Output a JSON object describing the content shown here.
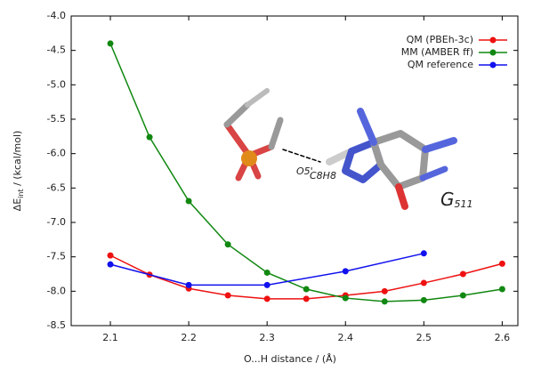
{
  "chart_data": {
    "type": "line",
    "xlabel": "O...H distance / (Å)",
    "ylabel": {
      "main": "ΔE",
      "sub": "int",
      "unit": " / (kcal/mol)"
    },
    "xlim": [
      2.05,
      2.62
    ],
    "ylim": [
      -8.5,
      -4.0
    ],
    "xticks": [
      2.1,
      2.2,
      2.3,
      2.4,
      2.5,
      2.6
    ],
    "yticks": [
      {
        "value": -4.0,
        "label": "-4.0"
      },
      -4.5,
      {
        "value": -5.0,
        "label": "-5.0"
      },
      -5.5,
      {
        "value": -6.0,
        "label": "-6.0"
      },
      -6.5,
      {
        "value": -7.0,
        "label": "-7.0"
      },
      -7.5,
      {
        "value": -8.0,
        "label": "-8.0"
      },
      {
        "value": -8.5,
        "label": "-8.5"
      }
    ],
    "legend": "upper right",
    "series": [
      {
        "name": "QM (PBEh-3c)",
        "color": "#ee1111",
        "x": [
          2.1,
          2.15,
          2.2,
          2.25,
          2.3,
          2.35,
          2.4,
          2.45,
          2.5,
          2.55,
          2.6
        ],
        "values": [
          -7.48,
          -7.76,
          -7.96,
          -8.06,
          -8.11,
          -8.11,
          -8.06,
          -8.0,
          -7.88,
          -7.75,
          -7.6
        ]
      },
      {
        "name": "MM (AMBER ff)",
        "color": "#118811",
        "x": [
          2.1,
          2.15,
          2.2,
          2.25,
          2.3,
          2.35,
          2.4,
          2.45,
          2.5,
          2.55,
          2.6
        ],
        "values": [
          -4.4,
          -5.76,
          -6.69,
          -7.32,
          -7.73,
          -7.97,
          -8.1,
          -8.15,
          -8.13,
          -8.06,
          -7.97
        ]
      },
      {
        "name": "QM reference",
        "color": "#1111ee",
        "x": [
          2.1,
          2.2,
          2.3,
          2.4,
          2.5
        ],
        "values": [
          -7.61,
          -7.91,
          -7.91,
          -7.71,
          -7.45
        ]
      }
    ],
    "annotations": {
      "oxygen": "O5'",
      "hydrogen": "C8H8",
      "residue": "G",
      "residue_number": "511"
    }
  }
}
